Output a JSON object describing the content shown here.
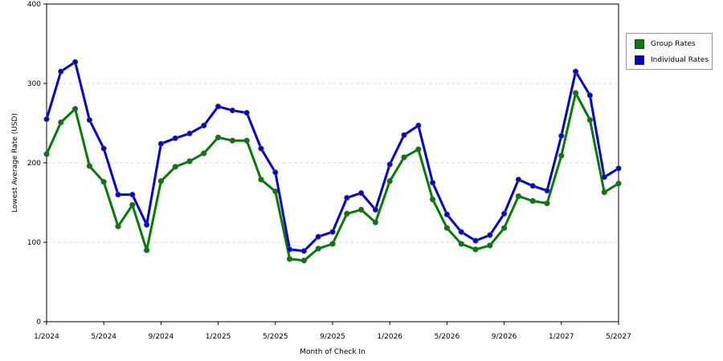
{
  "chart_data": {
    "type": "line",
    "title": "",
    "xlabel": "Month of Check In",
    "ylabel": "Lowest Average Rate (USD)",
    "ylim": [
      0,
      400
    ],
    "yticks": [
      "0",
      "100",
      "200",
      "300",
      "400"
    ],
    "xticks": [
      {
        "label": "1/2024",
        "index": 0
      },
      {
        "label": "5/2024",
        "index": 4
      },
      {
        "label": "9/2024",
        "index": 8
      },
      {
        "label": "1/2025",
        "index": 12
      },
      {
        "label": "5/2025",
        "index": 16
      },
      {
        "label": "9/2025",
        "index": 20
      },
      {
        "label": "1/2026",
        "index": 24
      },
      {
        "label": "5/2026",
        "index": 28
      },
      {
        "label": "9/2026",
        "index": 32
      },
      {
        "label": "1/2027",
        "index": 36
      },
      {
        "label": "5/2027",
        "index": 40
      }
    ],
    "grid": true,
    "legend_position": "right",
    "series": [
      {
        "name": "Group Rates",
        "color": "#008000",
        "values": [
          211,
          251,
          268,
          196,
          176,
          120,
          147,
          90,
          177,
          195,
          202,
          212,
          232,
          228,
          228,
          179,
          164,
          79,
          77,
          92,
          98,
          136,
          141,
          125,
          177,
          207,
          217,
          154,
          118,
          98,
          91,
          96,
          118,
          158,
          152,
          149,
          209,
          288,
          254,
          163,
          174
        ]
      },
      {
        "name": "Individual Rates",
        "color": "#0000dd",
        "values": [
          255,
          315,
          327,
          254,
          218,
          160,
          160,
          122,
          224,
          231,
          237,
          247,
          271,
          266,
          263,
          218,
          188,
          91,
          89,
          107,
          113,
          156,
          162,
          141,
          198,
          235,
          247,
          175,
          135,
          113,
          102,
          109,
          136,
          179,
          171,
          165,
          234,
          315,
          285,
          182,
          193
        ]
      }
    ]
  }
}
